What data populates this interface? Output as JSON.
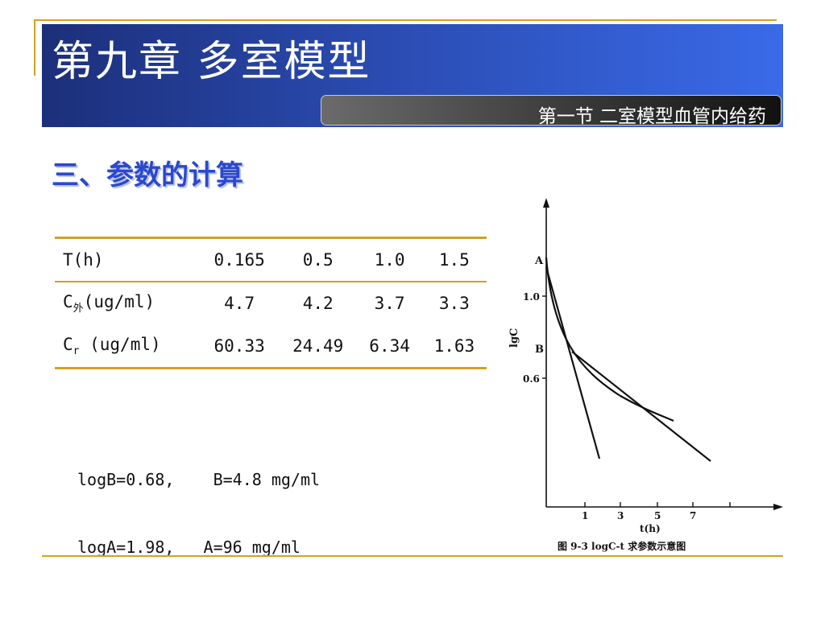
{
  "header": {
    "title": "第九章  多室模型",
    "subtitle": "第一节  二室模型血管内给药"
  },
  "section_heading": "三、参数的计算",
  "table": {
    "rows": [
      {
        "label": "T(h)",
        "label_sub": "",
        "label_tail": "",
        "values": [
          "0.165",
          "0.5",
          "1.0",
          "1.5"
        ]
      },
      {
        "label": "C",
        "label_sub": "外",
        "label_tail": "(ug/ml)",
        "values": [
          "4.7",
          "4.2",
          "3.7",
          "3.3"
        ]
      },
      {
        "label": "C",
        "label_sub": "r",
        "label_tail": " (ug/ml)",
        "values": [
          "60.33",
          "24.49",
          "6.34",
          "1.63"
        ]
      }
    ]
  },
  "formulas": [
    "logB=0.68,    B=4.8 mg/ml",
    "logA=1.98,   A=96 mg/ml"
  ],
  "figure": {
    "y_axis_label": "lgC",
    "y_ticks": [
      "1.0",
      "0.6"
    ],
    "x_ticks": [
      "1",
      "3",
      "5",
      "7"
    ],
    "x_axis_label": "t(h)",
    "point_labels": [
      "A",
      "B"
    ],
    "caption": "图 9-3   logC-t 求参数示意图"
  }
}
